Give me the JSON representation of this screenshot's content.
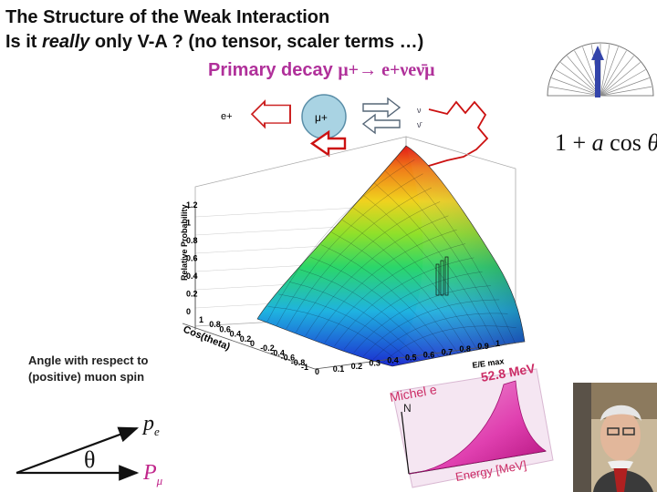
{
  "title": {
    "line1": "The Structure of the Weak Interaction",
    "line2_pre": "Is it ",
    "line2_italic": "really",
    "line2_post": " only V-A ?  (no tensor, scaler terms …)"
  },
  "decay": {
    "label": "Primary decay ",
    "mu_plus": "μ+",
    "arrow": "→",
    "products": " e+νeν̄μ"
  },
  "spin_diagram": {
    "positron": "e+",
    "muon": "μ+",
    "nu": "ν",
    "nubar": "ν̄"
  },
  "polar_formula": {
    "one_plus": "1 + ",
    "a": "a",
    "cos": " cos ",
    "theta": "θ"
  },
  "angle_caption": {
    "line1": "Angle with respect to",
    "line2": "(positive) muon spin"
  },
  "vector_diagram": {
    "p_e": "p",
    "p_e_sub": "e",
    "theta": "θ",
    "p_mu": "P",
    "p_mu_sub": "μ"
  },
  "surface_plot": {
    "zlabel": "Relative Probability",
    "z_ticks": [
      "0",
      "0.2",
      "0.4",
      "0.6",
      "0.8",
      "1",
      "1.2"
    ],
    "cos_label": "Cos(theta)",
    "cos_ticks": [
      "1",
      "0.8",
      "0.6",
      "0.4",
      "0.2",
      "0",
      "-0.2",
      "-0.4",
      "-0.6",
      "-0.8",
      "-1"
    ],
    "x_ticks": [
      "0",
      "0.1",
      "0.2",
      "0.3",
      "0.4",
      "0.5",
      "0.6",
      "0.7",
      "0.8",
      "0.9",
      "1"
    ],
    "xlabel": "E/E max"
  },
  "michel_inset": {
    "title": "Michel e",
    "mev": "52.8 MeV",
    "n_label": "N",
    "energy_label": "Energy [MeV]"
  },
  "colors": {
    "decay_text": "#b0309a",
    "red_arrow": "#cc1111",
    "muon_circle": "#a9d3e3",
    "polar_arrow": "#3344aa"
  }
}
